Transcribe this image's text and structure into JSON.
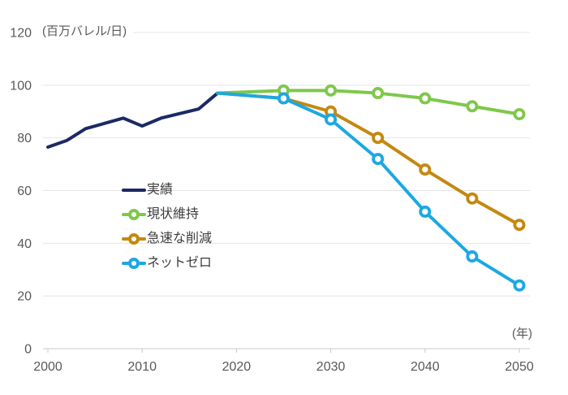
{
  "chart_data": {
    "type": "line",
    "title": "",
    "unit_label": "(百万バレル/日)",
    "x_axis_label": "(年)",
    "xlabel": "",
    "ylabel": "百万バレル/日",
    "x_ticks": [
      2000,
      2010,
      2020,
      2030,
      2040,
      2050
    ],
    "y_ticks": [
      0,
      20,
      40,
      60,
      80,
      100,
      120
    ],
    "xlim": [
      2000,
      2051
    ],
    "ylim": [
      0,
      120
    ],
    "grid": true,
    "legend_position": "inside-left",
    "series": [
      {
        "id": "actual",
        "name": "実績",
        "color": "#1b2a63",
        "marker": false,
        "z": 0,
        "points": [
          [
            2000,
            76.5
          ],
          [
            2002,
            79
          ],
          [
            2004,
            83.5
          ],
          [
            2006,
            85.5
          ],
          [
            2008,
            87.5
          ],
          [
            2010,
            84.5
          ],
          [
            2012,
            87.5
          ],
          [
            2016,
            91
          ],
          [
            2018,
            97
          ]
        ]
      },
      {
        "id": "status-quo",
        "name": "現状維持",
        "color": "#7ec84b",
        "marker": true,
        "marker_start": 1,
        "z": 1,
        "points": [
          [
            2018,
            97
          ],
          [
            2025,
            98
          ],
          [
            2030,
            98
          ],
          [
            2035,
            97
          ],
          [
            2040,
            95
          ],
          [
            2045,
            92
          ],
          [
            2050,
            89
          ]
        ]
      },
      {
        "id": "rapid-reduction",
        "name": "急速な削減",
        "color": "#c5880f",
        "marker": true,
        "marker_start": 1,
        "z": 2,
        "points": [
          [
            2018,
            97
          ],
          [
            2025,
            95
          ],
          [
            2030,
            90
          ],
          [
            2035,
            80
          ],
          [
            2040,
            68
          ],
          [
            2045,
            57
          ],
          [
            2050,
            47
          ]
        ]
      },
      {
        "id": "net-zero",
        "name": "ネットゼロ",
        "color": "#1ca8e3",
        "marker": true,
        "marker_start": 1,
        "z": 3,
        "points": [
          [
            2018,
            97
          ],
          [
            2025,
            95
          ],
          [
            2030,
            87
          ],
          [
            2035,
            72
          ],
          [
            2040,
            52
          ],
          [
            2045,
            35
          ],
          [
            2050,
            24
          ]
        ]
      }
    ]
  }
}
